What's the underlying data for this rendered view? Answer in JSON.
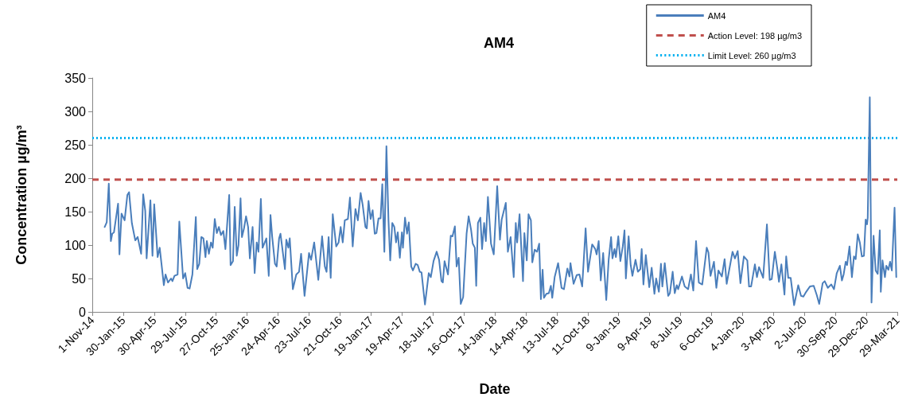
{
  "chart_data": {
    "type": "line",
    "title": "AM4",
    "xlabel": "Date",
    "ylabel": "Concentration µg/m³",
    "xlim": [
      "2014-11-01",
      "2021-03-29"
    ],
    "xticks": [
      {
        "value": "2014-11-01",
        "label": "1-Nov-14"
      },
      {
        "value": "2015-01-30",
        "label": "30-Jan-15"
      },
      {
        "value": "2015-04-30",
        "label": "30-Apr-15"
      },
      {
        "value": "2015-07-29",
        "label": "29-Jul-15"
      },
      {
        "value": "2015-10-27",
        "label": "27-Oct-15"
      },
      {
        "value": "2016-01-25",
        "label": "25-Jan-16"
      },
      {
        "value": "2016-04-24",
        "label": "24-Apr-16"
      },
      {
        "value": "2016-07-23",
        "label": "23-Jul-16"
      },
      {
        "value": "2016-10-21",
        "label": "21-Oct-16"
      },
      {
        "value": "2017-01-19",
        "label": "19-Jan-17"
      },
      {
        "value": "2017-04-19",
        "label": "19-Apr-17"
      },
      {
        "value": "2017-07-18",
        "label": "18-Jul-17"
      },
      {
        "value": "2017-10-16",
        "label": "16-Oct-17"
      },
      {
        "value": "2018-01-14",
        "label": "14-Jan-18"
      },
      {
        "value": "2018-04-14",
        "label": "14-Apr-18"
      },
      {
        "value": "2018-07-13",
        "label": "13-Jul-18"
      },
      {
        "value": "2018-10-11",
        "label": "11-Oct-18"
      },
      {
        "value": "2019-01-09",
        "label": "9-Jan-19"
      },
      {
        "value": "2019-04-09",
        "label": "9-Apr-19"
      },
      {
        "value": "2019-07-08",
        "label": "8-Jul-19"
      },
      {
        "value": "2019-10-06",
        "label": "6-Oct-19"
      },
      {
        "value": "2020-01-04",
        "label": "4-Jan-20"
      },
      {
        "value": "2020-04-03",
        "label": "3-Apr-20"
      },
      {
        "value": "2020-07-02",
        "label": "2-Jul-20"
      },
      {
        "value": "2020-09-30",
        "label": "30-Sep-20"
      },
      {
        "value": "2020-12-29",
        "label": "29-Dec-20"
      },
      {
        "value": "2021-03-29",
        "label": "29-Mar-21"
      }
    ],
    "ylim": [
      0,
      350
    ],
    "yticks": [
      0,
      50,
      100,
      150,
      200,
      250,
      300,
      350
    ],
    "grid": false,
    "legend": "top right",
    "marker": "none",
    "line_style": "solid",
    "ref_lines": [
      {
        "axis": "y",
        "value": 198,
        "label": "Action Level: 198 µg/m3",
        "color": "#c0504d",
        "line_style": "dashed"
      },
      {
        "axis": "y",
        "value": 260,
        "label": "Limit Level: 260 µg/m3",
        "color": "#00b0f0",
        "line_style": "dotted"
      }
    ],
    "series": [
      {
        "name": "AM4",
        "color": "#4a7ebb",
        "x": [
          "2014-12-07",
          "2014-12-13",
          "2014-12-19",
          "2014-12-25",
          "2014-12-29",
          "2015-01-03",
          "2015-01-15",
          "2015-01-19",
          "2015-01-25",
          "2015-02-03",
          "2015-02-11",
          "2015-02-16",
          "2015-02-24",
          "2015-03-06",
          "2015-03-13",
          "2015-03-23",
          "2015-03-29",
          "2015-04-04",
          "2015-04-08",
          "2015-04-19",
          "2015-04-25",
          "2015-04-30",
          "2015-05-10",
          "2015-05-16",
          "2015-05-28",
          "2015-06-02",
          "2015-06-09",
          "2015-06-18",
          "2015-06-22",
          "2015-06-28",
          "2015-07-07",
          "2015-07-12",
          "2015-07-23",
          "2015-07-29",
          "2015-08-05",
          "2015-08-11",
          "2015-08-19",
          "2015-08-29",
          "2015-09-02",
          "2015-09-08",
          "2015-09-14",
          "2015-09-20",
          "2015-09-26",
          "2015-09-30",
          "2015-10-06",
          "2015-10-12",
          "2015-10-17",
          "2015-10-23",
          "2015-10-29",
          "2015-11-04",
          "2015-11-10",
          "2015-11-17",
          "2015-11-23",
          "2015-12-04",
          "2015-12-08",
          "2015-12-15",
          "2015-12-20",
          "2015-12-26",
          "2015-12-31",
          "2016-01-06",
          "2016-01-10",
          "2016-01-16",
          "2016-01-22",
          "2016-01-28",
          "2016-02-02",
          "2016-02-10",
          "2016-02-16",
          "2016-02-22",
          "2016-02-27",
          "2016-03-05",
          "2016-03-10",
          "2016-03-21",
          "2016-03-28",
          "2016-04-02",
          "2016-04-07",
          "2016-04-15",
          "2016-04-20",
          "2016-04-27",
          "2016-05-01",
          "2016-05-14",
          "2016-05-18",
          "2016-05-24",
          "2016-05-28",
          "2016-06-06",
          "2016-06-16",
          "2016-06-24",
          "2016-06-30",
          "2016-07-10",
          "2016-07-23",
          "2016-07-29",
          "2016-08-07",
          "2016-08-19",
          "2016-08-30",
          "2016-09-07",
          "2016-09-12",
          "2016-09-18",
          "2016-09-24",
          "2016-09-30",
          "2016-10-10",
          "2016-10-17",
          "2016-10-23",
          "2016-10-29",
          "2016-11-04",
          "2016-11-13",
          "2016-11-19",
          "2016-11-27",
          "2016-12-05",
          "2016-12-12",
          "2016-12-20",
          "2016-12-26",
          "2017-01-03",
          "2017-01-07",
          "2017-01-12",
          "2017-01-18",
          "2017-01-24",
          "2017-01-30",
          "2017-02-04",
          "2017-02-10",
          "2017-02-16",
          "2017-02-21",
          "2017-02-27",
          "2017-03-05",
          "2017-03-11",
          "2017-03-16",
          "2017-03-22",
          "2017-03-28",
          "2017-04-02",
          "2017-04-07",
          "2017-04-13",
          "2017-04-19",
          "2017-04-22",
          "2017-04-28",
          "2017-05-04",
          "2017-05-09",
          "2017-05-16",
          "2017-05-21",
          "2017-05-29",
          "2017-06-04",
          "2017-06-10",
          "2017-06-15",
          "2017-06-25",
          "2017-07-06",
          "2017-07-12",
          "2017-07-20",
          "2017-07-29",
          "2017-08-05",
          "2017-08-12",
          "2017-08-16",
          "2017-08-21",
          "2017-08-31",
          "2017-09-08",
          "2017-09-13",
          "2017-09-20",
          "2017-09-25",
          "2017-10-01",
          "2017-10-07",
          "2017-10-14",
          "2017-10-24",
          "2017-10-30",
          "2017-11-06",
          "2017-11-11",
          "2017-11-17",
          "2017-11-21",
          "2017-11-26",
          "2017-12-03",
          "2017-12-08",
          "2017-12-14",
          "2017-12-19",
          "2017-12-25",
          "2018-01-03",
          "2018-01-11",
          "2018-01-21",
          "2018-01-29",
          "2018-02-03",
          "2018-02-15",
          "2018-02-21",
          "2018-03-01",
          "2018-03-10",
          "2018-03-16",
          "2018-03-20",
          "2018-03-27",
          "2018-04-06",
          "2018-04-10",
          "2018-04-17",
          "2018-04-22",
          "2018-04-29",
          "2018-05-03",
          "2018-05-10",
          "2018-05-17",
          "2018-05-23",
          "2018-05-28",
          "2018-06-02",
          "2018-06-06",
          "2018-06-13",
          "2018-06-20",
          "2018-06-26",
          "2018-06-30",
          "2018-07-07",
          "2018-07-17",
          "2018-07-27",
          "2018-08-03",
          "2018-08-13",
          "2018-08-19",
          "2018-08-22",
          "2018-08-31",
          "2018-09-09",
          "2018-09-17",
          "2018-09-25",
          "2018-10-05",
          "2018-10-12",
          "2018-10-24",
          "2018-11-02",
          "2018-11-06",
          "2018-11-12",
          "2018-11-18",
          "2018-11-25",
          "2018-12-04",
          "2018-12-11",
          "2018-12-18",
          "2018-12-22",
          "2018-12-28",
          "2019-01-01",
          "2019-01-08",
          "2019-01-14",
          "2019-01-21",
          "2019-01-26",
          "2019-01-30",
          "2019-02-07",
          "2019-02-13",
          "2019-02-18",
          "2019-02-27",
          "2019-03-06",
          "2019-03-13",
          "2019-03-17",
          "2019-03-22",
          "2019-03-29",
          "2019-04-08",
          "2019-04-15",
          "2019-04-23",
          "2019-04-28",
          "2019-05-06",
          "2019-05-12",
          "2019-05-16",
          "2019-05-23",
          "2019-06-02",
          "2019-06-07",
          "2019-06-15",
          "2019-06-21",
          "2019-06-27",
          "2019-07-01",
          "2019-07-12",
          "2019-07-20",
          "2019-07-30",
          "2019-08-07",
          "2019-08-14",
          "2019-08-22",
          "2019-08-30",
          "2019-09-09",
          "2019-09-22",
          "2019-09-27",
          "2019-10-03",
          "2019-10-13",
          "2019-10-20",
          "2019-10-26",
          "2019-11-05",
          "2019-11-13",
          "2019-11-19",
          "2019-12-06",
          "2019-12-13",
          "2019-12-21",
          "2019-12-29",
          "2020-01-08",
          "2020-01-18",
          "2020-01-23",
          "2020-01-29",
          "2020-02-09",
          "2020-02-15",
          "2020-02-21",
          "2020-03-04",
          "2020-03-15",
          "2020-03-23",
          "2020-03-29",
          "2020-04-07",
          "2020-04-15",
          "2020-04-19",
          "2020-04-26",
          "2020-05-05",
          "2020-05-10",
          "2020-05-16",
          "2020-05-23",
          "2020-06-02",
          "2020-06-14",
          "2020-06-22",
          "2020-06-29",
          "2020-07-07",
          "2020-07-18",
          "2020-07-29",
          "2020-08-07",
          "2020-08-14",
          "2020-08-24",
          "2020-08-30",
          "2020-09-08",
          "2020-09-18",
          "2020-09-26",
          "2020-10-04",
          "2020-10-13",
          "2020-10-19",
          "2020-10-24",
          "2020-10-30",
          "2020-11-03",
          "2020-11-10",
          "2020-11-17",
          "2020-11-23",
          "2020-11-28",
          "2020-12-04",
          "2020-12-10",
          "2020-12-16",
          "2020-12-22",
          "2020-12-27",
          "2020-12-31",
          "2021-01-02",
          "2021-01-08",
          "2021-01-13",
          "2021-01-19",
          "2021-01-25",
          "2021-01-31",
          "2021-02-06",
          "2021-02-09",
          "2021-02-14",
          "2021-02-21",
          "2021-02-25",
          "2021-03-03",
          "2021-03-08",
          "2021-03-13",
          "2021-03-21",
          "2021-03-26"
        ],
        "values": [
          127,
          134,
          192,
          106,
          117,
          119,
          162,
          86,
          147,
          137,
          175,
          179,
          133,
          107,
          112,
          87,
          176,
          151,
          80,
          167,
          84,
          161,
          82,
          96,
          40,
          56,
          44,
          50,
          46,
          54,
          56,
          135,
          50,
          58,
          36,
          35,
          56,
          142,
          64,
          72,
          112,
          110,
          82,
          106,
          87,
          104,
          96,
          139,
          118,
          127,
          115,
          121,
          94,
          175,
          70,
          76,
          157,
          84,
          100,
          170,
          112,
          125,
          143,
          127,
          80,
          127,
          58,
          104,
          90,
          169,
          96,
          110,
          54,
          145,
          112,
          72,
          68,
          110,
          117,
          64,
          108,
          96,
          110,
          34,
          56,
          60,
          87,
          24,
          88,
          78,
          104,
          48,
          113,
          68,
          60,
          112,
          51,
          146,
          98,
          104,
          127,
          104,
          137,
          139,
          171,
          98,
          154,
          137,
          178,
          160,
          127,
          125,
          166,
          139,
          152,
          117,
          118,
          140,
          140,
          191,
          90,
          248,
          137,
          77,
          133,
          127,
          104,
          119,
          81,
          119,
          96,
          141,
          117,
          134,
          68,
          62,
          72,
          70,
          60,
          59,
          11,
          58,
          52,
          76,
          90,
          78,
          46,
          44,
          76,
          56,
          114,
          113,
          128,
          68,
          81,
          12,
          22,
          117,
          143,
          123,
          102,
          96,
          39,
          133,
          141,
          94,
          133,
          106,
          172,
          102,
          86,
          188,
          108,
          138,
          163,
          90,
          112,
          52,
          133,
          104,
          146,
          46,
          118,
          77,
          146,
          137,
          74,
          93,
          90,
          102,
          19,
          63,
          21,
          27,
          28,
          39,
          21,
          52,
          73,
          36,
          34,
          65,
          53,
          73,
          42,
          55,
          56,
          38,
          125,
          60,
          101,
          94,
          86,
          106,
          47,
          88,
          18,
          78,
          112,
          80,
          94,
          82,
          113,
          76,
          98,
          122,
          50,
          113,
          70,
          54,
          78,
          60,
          64,
          94,
          41,
          85,
          37,
          66,
          27,
          50,
          30,
          72,
          38,
          73,
          24,
          28,
          60,
          28,
          40,
          34,
          53,
          38,
          34,
          56,
          32,
          106,
          44,
          41,
          96,
          89,
          54,
          75,
          36,
          62,
          53,
          79,
          42,
          90,
          80,
          91,
          43,
          83,
          77,
          38,
          38,
          71,
          52,
          67,
          51,
          131,
          48,
          49,
          90,
          62,
          45,
          71,
          26,
          83,
          51,
          51,
          10,
          40,
          24,
          23,
          30,
          38,
          39,
          25,
          12,
          43,
          46,
          36,
          41,
          34,
          58,
          69,
          47,
          56,
          75,
          70,
          98,
          52,
          83,
          79,
          116,
          104,
          83,
          84,
          138,
          131,
          141,
          321,
          14,
          114,
          62,
          57,
          122,
          30,
          77,
          52,
          69,
          63,
          75,
          62,
          156,
          52
        ]
      }
    ]
  }
}
